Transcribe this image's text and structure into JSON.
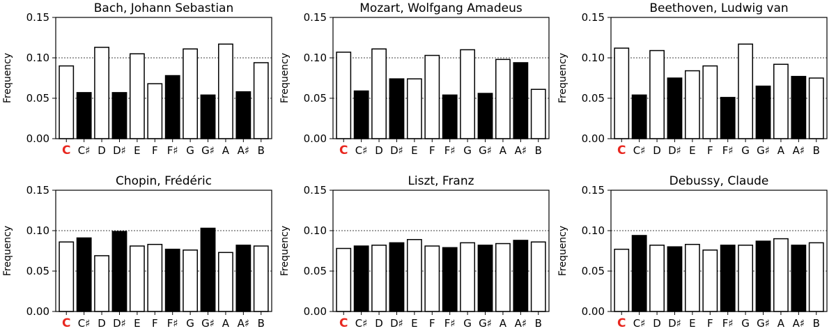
{
  "colors": {
    "white_key_fill": "#ffffff",
    "black_key_fill": "#000000",
    "highlight_tonic": "#e8271f",
    "axis": "#000000",
    "grid": "#000000"
  },
  "chart_data": [
    {
      "type": "bar",
      "title": "Bach, Johann Sebastian",
      "ylabel": "Frequency",
      "categories": [
        "C",
        "C♯",
        "D",
        "D♯",
        "E",
        "F",
        "F♯",
        "G",
        "G♯",
        "A",
        "A♯",
        "B"
      ],
      "values": [
        0.09,
        0.057,
        0.113,
        0.057,
        0.105,
        0.068,
        0.078,
        0.111,
        0.054,
        0.117,
        0.058,
        0.094
      ],
      "black_keys": [
        false,
        true,
        false,
        true,
        false,
        false,
        true,
        false,
        true,
        false,
        true,
        false
      ],
      "highlight_category": "C",
      "ylim": [
        0,
        0.15
      ],
      "yticks": [
        "0.00",
        "0.05",
        "0.10",
        "0.15"
      ],
      "grid": "horizontal dotted at 0.05 and 0.10"
    },
    {
      "type": "bar",
      "title": "Mozart, Wolfgang Amadeus",
      "ylabel": "Frequency",
      "categories": [
        "C",
        "C♯",
        "D",
        "D♯",
        "E",
        "F",
        "F♯",
        "G",
        "G♯",
        "A",
        "A♯",
        "B"
      ],
      "values": [
        0.107,
        0.059,
        0.111,
        0.074,
        0.074,
        0.103,
        0.054,
        0.11,
        0.056,
        0.098,
        0.094,
        0.061
      ],
      "black_keys": [
        false,
        true,
        false,
        true,
        false,
        false,
        true,
        false,
        true,
        false,
        true,
        false
      ],
      "highlight_category": "C",
      "ylim": [
        0,
        0.15
      ],
      "yticks": [
        "0.00",
        "0.05",
        "0.10",
        "0.15"
      ],
      "grid": "horizontal dotted at 0.05 and 0.10"
    },
    {
      "type": "bar",
      "title": "Beethoven, Ludwig van",
      "ylabel": "Frequency",
      "categories": [
        "C",
        "C♯",
        "D",
        "D♯",
        "E",
        "F",
        "F♯",
        "G",
        "G♯",
        "A",
        "A♯",
        "B"
      ],
      "values": [
        0.112,
        0.054,
        0.109,
        0.075,
        0.084,
        0.09,
        0.051,
        0.117,
        0.065,
        0.092,
        0.077,
        0.075
      ],
      "black_keys": [
        false,
        true,
        false,
        true,
        false,
        false,
        true,
        false,
        true,
        false,
        true,
        false
      ],
      "highlight_category": "C",
      "ylim": [
        0,
        0.15
      ],
      "yticks": [
        "0.00",
        "0.05",
        "0.10",
        "0.15"
      ],
      "grid": "horizontal dotted at 0.05 and 0.10"
    },
    {
      "type": "bar",
      "title": "Chopin, Frédéric",
      "ylabel": "Frequency",
      "categories": [
        "C",
        "C♯",
        "D",
        "D♯",
        "E",
        "F",
        "F♯",
        "G",
        "G♯",
        "A",
        "A♯",
        "B"
      ],
      "values": [
        0.086,
        0.091,
        0.069,
        0.099,
        0.081,
        0.083,
        0.077,
        0.076,
        0.103,
        0.073,
        0.082,
        0.081
      ],
      "black_keys": [
        false,
        true,
        false,
        true,
        false,
        false,
        true,
        false,
        true,
        false,
        true,
        false
      ],
      "highlight_category": "C",
      "ylim": [
        0,
        0.15
      ],
      "yticks": [
        "0.00",
        "0.05",
        "0.10",
        "0.15"
      ],
      "grid": "horizontal dotted at 0.05 and 0.10"
    },
    {
      "type": "bar",
      "title": "Liszt, Franz",
      "ylabel": "Frequency",
      "categories": [
        "C",
        "C♯",
        "D",
        "D♯",
        "E",
        "F",
        "F♯",
        "G",
        "G♯",
        "A",
        "A♯",
        "B"
      ],
      "values": [
        0.078,
        0.081,
        0.082,
        0.085,
        0.089,
        0.081,
        0.079,
        0.085,
        0.082,
        0.084,
        0.088,
        0.086
      ],
      "black_keys": [
        false,
        true,
        false,
        true,
        false,
        false,
        true,
        false,
        true,
        false,
        true,
        false
      ],
      "highlight_category": "C",
      "ylim": [
        0,
        0.15
      ],
      "yticks": [
        "0.00",
        "0.05",
        "0.10",
        "0.15"
      ],
      "grid": "horizontal dotted at 0.05 and 0.10"
    },
    {
      "type": "bar",
      "title": "Debussy, Claude",
      "ylabel": "Frequency",
      "categories": [
        "C",
        "C♯",
        "D",
        "D♯",
        "E",
        "F",
        "F♯",
        "G",
        "G♯",
        "A",
        "A♯",
        "B"
      ],
      "values": [
        0.077,
        0.094,
        0.082,
        0.08,
        0.083,
        0.076,
        0.082,
        0.082,
        0.087,
        0.09,
        0.082,
        0.085
      ],
      "black_keys": [
        false,
        true,
        false,
        true,
        false,
        false,
        true,
        false,
        true,
        false,
        true,
        false
      ],
      "highlight_category": "C",
      "ylim": [
        0,
        0.15
      ],
      "yticks": [
        "0.00",
        "0.05",
        "0.10",
        "0.15"
      ],
      "grid": "horizontal dotted at 0.05 and 0.10"
    }
  ]
}
